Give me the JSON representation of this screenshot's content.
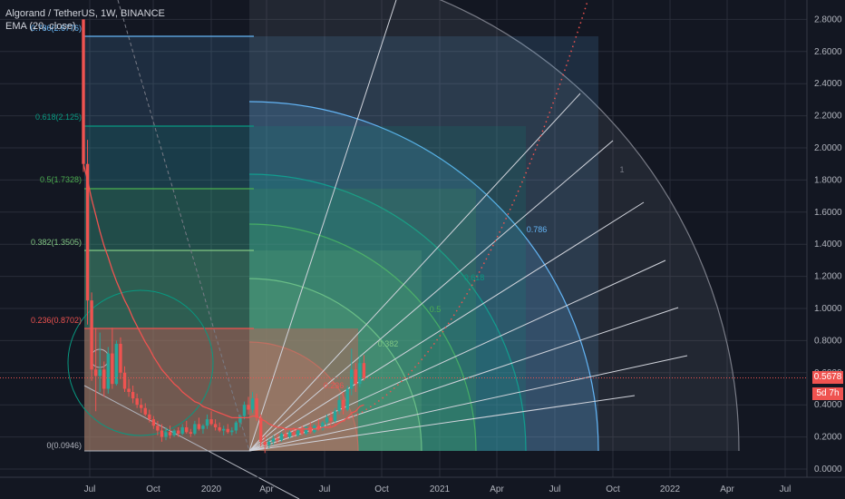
{
  "header": {
    "symbol": "Algorand / TetherUS, 1W, BINANCE",
    "indicator": "EMA (20, close)"
  },
  "price_tags": {
    "last_price": "0.5678",
    "countdown": "5d 7h"
  },
  "colors": {
    "background": "#131722",
    "up": "#26a69a",
    "down": "#ef5350",
    "ema": "#ef5350",
    "grid": "#2a2e39",
    "axis_text": "#b2b5be"
  },
  "chart_data": {
    "type": "candlestick",
    "title": "Algorand / TetherUS, 1W, BINANCE",
    "x_tick_labels": [
      "Jul",
      "Oct",
      "2020",
      "Apr",
      "Jul",
      "Oct",
      "2021",
      "Apr",
      "Jul",
      "Oct",
      "2022",
      "Apr",
      "Jul"
    ],
    "y_tick_labels": [
      "0.0000",
      "0.2000",
      "0.4000",
      "0.6000",
      "0.8000",
      "1.0000",
      "1.2000",
      "1.4000",
      "1.6000",
      "1.8000",
      "2.0000",
      "2.2000",
      "2.4000",
      "2.6000",
      "2.8000"
    ],
    "ylim": [
      0,
      2.8
    ],
    "last_price": 0.5678,
    "grid": true,
    "candles": [
      {
        "o": 2.8,
        "h": 2.8,
        "l": 1.85,
        "c": 1.9
      },
      {
        "o": 1.9,
        "h": 2.05,
        "l": 0.9,
        "c": 1.05
      },
      {
        "o": 1.05,
        "h": 1.1,
        "l": 0.55,
        "c": 0.62
      },
      {
        "o": 0.62,
        "h": 0.88,
        "l": 0.36,
        "c": 0.58
      },
      {
        "o": 0.58,
        "h": 0.85,
        "l": 0.48,
        "c": 0.62
      },
      {
        "o": 0.62,
        "h": 0.67,
        "l": 0.45,
        "c": 0.5
      },
      {
        "o": 0.5,
        "h": 0.76,
        "l": 0.47,
        "c": 0.72
      },
      {
        "o": 0.72,
        "h": 0.88,
        "l": 0.5,
        "c": 0.53
      },
      {
        "o": 0.53,
        "h": 0.8,
        "l": 0.52,
        "c": 0.78
      },
      {
        "o": 0.78,
        "h": 0.82,
        "l": 0.56,
        "c": 0.6
      },
      {
        "o": 0.6,
        "h": 0.64,
        "l": 0.48,
        "c": 0.5
      },
      {
        "o": 0.5,
        "h": 0.56,
        "l": 0.45,
        "c": 0.48
      },
      {
        "o": 0.48,
        "h": 0.52,
        "l": 0.41,
        "c": 0.44
      },
      {
        "o": 0.44,
        "h": 0.47,
        "l": 0.38,
        "c": 0.4
      },
      {
        "o": 0.4,
        "h": 0.44,
        "l": 0.35,
        "c": 0.38
      },
      {
        "o": 0.38,
        "h": 0.41,
        "l": 0.33,
        "c": 0.34
      },
      {
        "o": 0.34,
        "h": 0.37,
        "l": 0.29,
        "c": 0.31
      },
      {
        "o": 0.31,
        "h": 0.33,
        "l": 0.25,
        "c": 0.27
      },
      {
        "o": 0.27,
        "h": 0.3,
        "l": 0.21,
        "c": 0.24
      },
      {
        "o": 0.24,
        "h": 0.28,
        "l": 0.17,
        "c": 0.2
      },
      {
        "o": 0.2,
        "h": 0.26,
        "l": 0.18,
        "c": 0.23
      },
      {
        "o": 0.23,
        "h": 0.27,
        "l": 0.19,
        "c": 0.21
      },
      {
        "o": 0.21,
        "h": 0.25,
        "l": 0.2,
        "c": 0.24
      },
      {
        "o": 0.24,
        "h": 0.26,
        "l": 0.2,
        "c": 0.22
      },
      {
        "o": 0.22,
        "h": 0.28,
        "l": 0.21,
        "c": 0.26
      },
      {
        "o": 0.26,
        "h": 0.3,
        "l": 0.22,
        "c": 0.23
      },
      {
        "o": 0.23,
        "h": 0.25,
        "l": 0.2,
        "c": 0.22
      },
      {
        "o": 0.22,
        "h": 0.3,
        "l": 0.21,
        "c": 0.28
      },
      {
        "o": 0.28,
        "h": 0.32,
        "l": 0.24,
        "c": 0.25
      },
      {
        "o": 0.25,
        "h": 0.28,
        "l": 0.22,
        "c": 0.27
      },
      {
        "o": 0.27,
        "h": 0.34,
        "l": 0.25,
        "c": 0.31
      },
      {
        "o": 0.31,
        "h": 0.36,
        "l": 0.27,
        "c": 0.28
      },
      {
        "o": 0.28,
        "h": 0.31,
        "l": 0.24,
        "c": 0.26
      },
      {
        "o": 0.26,
        "h": 0.29,
        "l": 0.23,
        "c": 0.24
      },
      {
        "o": 0.24,
        "h": 0.27,
        "l": 0.21,
        "c": 0.25
      },
      {
        "o": 0.25,
        "h": 0.28,
        "l": 0.22,
        "c": 0.23
      },
      {
        "o": 0.23,
        "h": 0.26,
        "l": 0.21,
        "c": 0.24
      },
      {
        "o": 0.24,
        "h": 0.3,
        "l": 0.22,
        "c": 0.29
      },
      {
        "o": 0.29,
        "h": 0.34,
        "l": 0.26,
        "c": 0.33
      },
      {
        "o": 0.33,
        "h": 0.42,
        "l": 0.31,
        "c": 0.4
      },
      {
        "o": 0.4,
        "h": 0.45,
        "l": 0.34,
        "c": 0.37
      },
      {
        "o": 0.37,
        "h": 0.48,
        "l": 0.35,
        "c": 0.44
      },
      {
        "o": 0.44,
        "h": 0.47,
        "l": 0.3,
        "c": 0.32
      },
      {
        "o": 0.32,
        "h": 0.34,
        "l": 0.14,
        "c": 0.17
      },
      {
        "o": 0.17,
        "h": 0.21,
        "l": 0.1,
        "c": 0.15
      },
      {
        "o": 0.15,
        "h": 0.19,
        "l": 0.13,
        "c": 0.17
      },
      {
        "o": 0.17,
        "h": 0.21,
        "l": 0.15,
        "c": 0.19
      },
      {
        "o": 0.19,
        "h": 0.22,
        "l": 0.16,
        "c": 0.18
      },
      {
        "o": 0.18,
        "h": 0.23,
        "l": 0.17,
        "c": 0.22
      },
      {
        "o": 0.22,
        "h": 0.25,
        "l": 0.19,
        "c": 0.2
      },
      {
        "o": 0.2,
        "h": 0.24,
        "l": 0.19,
        "c": 0.23
      },
      {
        "o": 0.23,
        "h": 0.26,
        "l": 0.2,
        "c": 0.21
      },
      {
        "o": 0.21,
        "h": 0.25,
        "l": 0.2,
        "c": 0.24
      },
      {
        "o": 0.24,
        "h": 0.27,
        "l": 0.21,
        "c": 0.22
      },
      {
        "o": 0.22,
        "h": 0.27,
        "l": 0.21,
        "c": 0.26
      },
      {
        "o": 0.26,
        "h": 0.29,
        "l": 0.22,
        "c": 0.23
      },
      {
        "o": 0.23,
        "h": 0.28,
        "l": 0.22,
        "c": 0.27
      },
      {
        "o": 0.27,
        "h": 0.31,
        "l": 0.24,
        "c": 0.25
      },
      {
        "o": 0.25,
        "h": 0.3,
        "l": 0.24,
        "c": 0.29
      },
      {
        "o": 0.29,
        "h": 0.34,
        "l": 0.27,
        "c": 0.32
      },
      {
        "o": 0.32,
        "h": 0.36,
        "l": 0.28,
        "c": 0.3
      },
      {
        "o": 0.3,
        "h": 0.38,
        "l": 0.29,
        "c": 0.36
      },
      {
        "o": 0.36,
        "h": 0.46,
        "l": 0.34,
        "c": 0.43
      },
      {
        "o": 0.43,
        "h": 0.48,
        "l": 0.34,
        "c": 0.37
      },
      {
        "o": 0.37,
        "h": 0.52,
        "l": 0.36,
        "c": 0.5
      },
      {
        "o": 0.5,
        "h": 0.75,
        "l": 0.46,
        "c": 0.62
      },
      {
        "o": 0.62,
        "h": 0.66,
        "l": 0.48,
        "c": 0.53
      },
      {
        "o": 0.53,
        "h": 0.7,
        "l": 0.51,
        "c": 0.66
      },
      {
        "o": 0.66,
        "h": 0.71,
        "l": 0.55,
        "c": 0.5678
      }
    ],
    "ema_values": [
      1.9,
      1.8,
      1.68,
      1.58,
      1.48,
      1.39,
      1.32,
      1.24,
      1.17,
      1.11,
      1.05,
      1.0,
      0.94,
      0.89,
      0.84,
      0.79,
      0.75,
      0.7,
      0.66,
      0.62,
      0.59,
      0.56,
      0.53,
      0.51,
      0.48,
      0.46,
      0.44,
      0.42,
      0.41,
      0.39,
      0.38,
      0.37,
      0.36,
      0.35,
      0.34,
      0.33,
      0.32,
      0.32,
      0.32,
      0.32,
      0.32,
      0.33,
      0.33,
      0.31,
      0.3,
      0.28,
      0.27,
      0.26,
      0.26,
      0.25,
      0.25,
      0.25,
      0.25,
      0.25,
      0.25,
      0.25,
      0.25,
      0.25,
      0.26,
      0.26,
      0.26,
      0.27,
      0.29,
      0.3,
      0.32,
      0.35,
      0.36,
      0.39,
      0.4
    ],
    "fib_levels": [
      {
        "ratio": 0.236,
        "color": "#ef5350"
      },
      {
        "ratio": 0.382,
        "color": "#81c784"
      },
      {
        "ratio": 0.5,
        "color": "#4caf50"
      },
      {
        "ratio": 0.618,
        "color": "#089981"
      },
      {
        "ratio": 0.786,
        "color": "#64b5f6"
      },
      {
        "ratio": 1,
        "color": "#787b86"
      }
    ],
    "fib_labels": {
      "retracement": [
        "0(0.0946)",
        "0.236(0.8702)",
        "0.382(1.3505)",
        "0.5(1.7328)",
        "0.618(2.125)",
        "0.786(2.6776)"
      ],
      "arc": [
        "0.236",
        "0.382",
        "0.5",
        "0.618",
        "0.786",
        "1"
      ]
    }
  }
}
